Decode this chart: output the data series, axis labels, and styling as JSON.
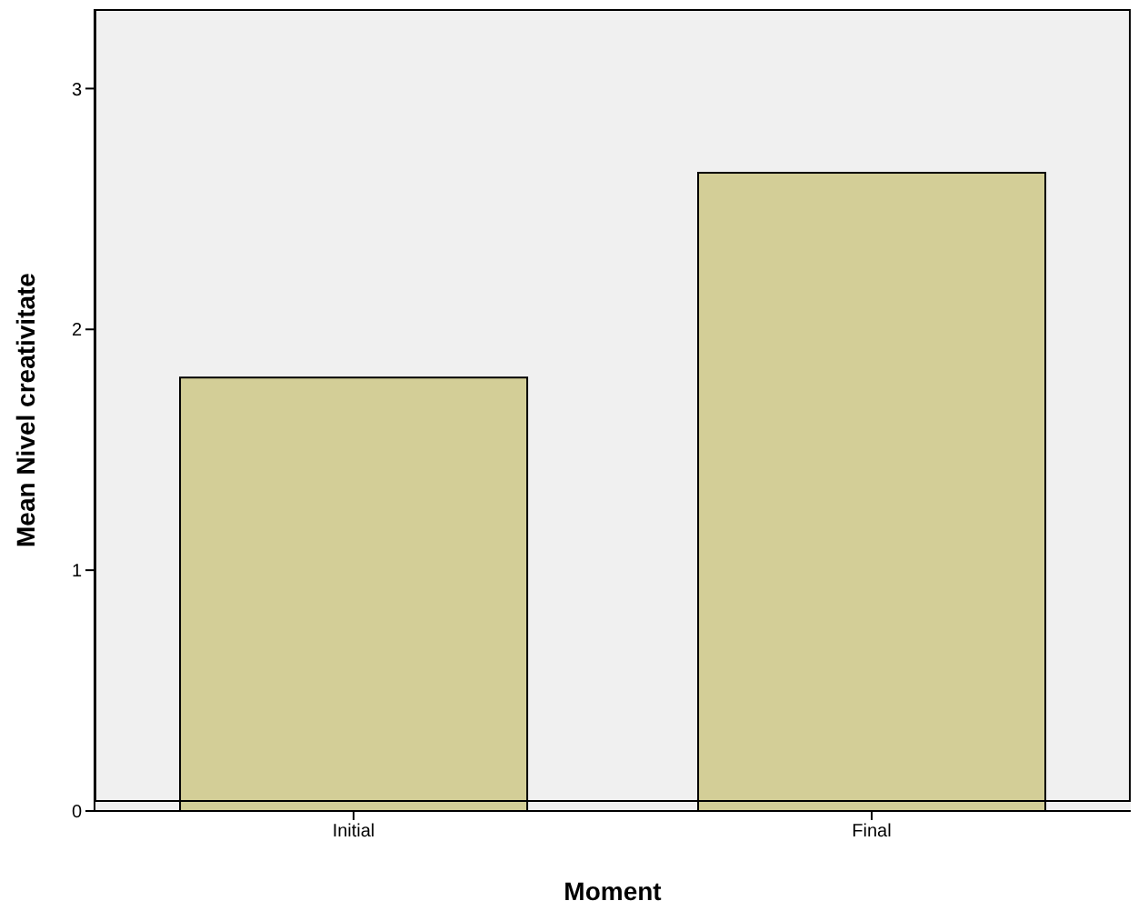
{
  "chart_data": {
    "type": "bar",
    "xlabel": "Moment",
    "ylabel": "Mean Nivel creativitate",
    "categories": [
      "Initial",
      "Final"
    ],
    "values": [
      1.8,
      2.65
    ],
    "color": "#d3ce97",
    "ylim": [
      0,
      3.33
    ],
    "yticks": [
      0,
      1,
      2,
      3
    ],
    "grid": false
  }
}
